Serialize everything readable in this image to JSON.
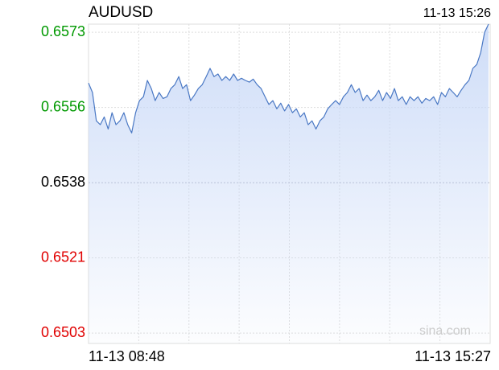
{
  "chart_data": {
    "type": "line",
    "title": "AUDUSD",
    "timestamp": "11-13 15:26",
    "x_start_label": "11-13 08:48",
    "x_end_label": "11-13 15:27",
    "watermark": "sina.com",
    "color": "#4a78c4",
    "fill_color": "#c9d9f7",
    "grid": true,
    "ylim": [
      0.65006,
      0.65749
    ],
    "yticks": [
      {
        "value": 0.6503,
        "label": "0.6503"
      },
      {
        "value": 0.65205,
        "label": "0.6521"
      },
      {
        "value": 0.6538,
        "label": "0.6538"
      },
      {
        "value": 0.65555,
        "label": "0.6556"
      },
      {
        "value": 0.6573,
        "label": "0.6573"
      }
    ],
    "ytick_colors": [
      "#e00000",
      "#e00000",
      "#000000",
      "#009900",
      "#009900"
    ],
    "values": [
      0.65612,
      0.6559,
      0.65524,
      0.65515,
      0.65533,
      0.65505,
      0.65543,
      0.65515,
      0.65524,
      0.65543,
      0.65515,
      0.65496,
      0.65543,
      0.65571,
      0.6558,
      0.65618,
      0.65599,
      0.65571,
      0.6559,
      0.65576,
      0.6558,
      0.65599,
      0.65608,
      0.65627,
      0.65599,
      0.65608,
      0.65571,
      0.65584,
      0.65599,
      0.65608,
      0.65627,
      0.65646,
      0.65627,
      0.65633,
      0.65618,
      0.65627,
      0.65618,
      0.65633,
      0.65618,
      0.65623,
      0.65618,
      0.65614,
      0.65621,
      0.65608,
      0.65599,
      0.6558,
      0.65562,
      0.65571,
      0.65552,
      0.65565,
      0.65547,
      0.65562,
      0.65543,
      0.65552,
      0.65533,
      0.65543,
      0.65515,
      0.65524,
      0.65505,
      0.65524,
      0.65533,
      0.65552,
      0.65562,
      0.65571,
      0.65562,
      0.6558,
      0.6559,
      0.65608,
      0.6559,
      0.65599,
      0.65571,
      0.65584,
      0.65571,
      0.6558,
      0.65595,
      0.65571,
      0.6559,
      0.65576,
      0.65599,
      0.65571,
      0.6558,
      0.65562,
      0.6558,
      0.65571,
      0.6558,
      0.65565,
      0.65576,
      0.65571,
      0.6558,
      0.65562,
      0.6559,
      0.6558,
      0.65599,
      0.6559,
      0.6558,
      0.65595,
      0.65608,
      0.65618,
      0.65646,
      0.65655,
      0.65683,
      0.6573,
      0.65749
    ]
  }
}
